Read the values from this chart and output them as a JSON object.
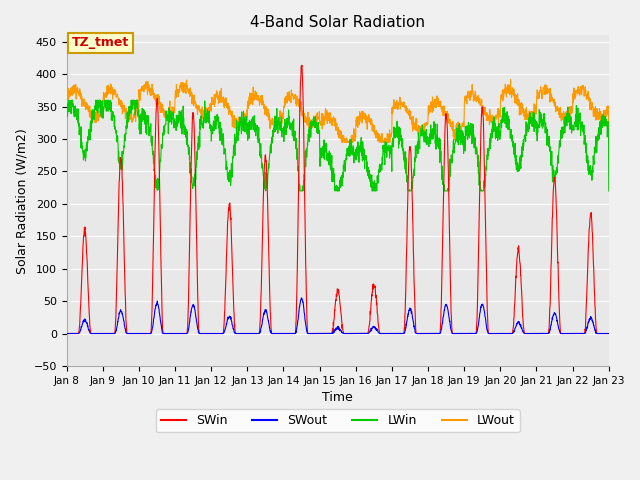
{
  "title": "4-Band Solar Radiation",
  "xlabel": "Time",
  "ylabel": "Solar Radiation (W/m2)",
  "ylim": [
    -50,
    460
  ],
  "yticks": [
    -50,
    0,
    50,
    100,
    150,
    200,
    250,
    300,
    350,
    400,
    450
  ],
  "x_start": 8,
  "x_end": 23,
  "xtick_labels": [
    "Jan 8",
    "Jan 9",
    "Jan 10",
    "Jan 11",
    "Jan 12",
    "Jan 13",
    "Jan 14",
    "Jan 15",
    "Jan 16",
    "Jan 17",
    "Jan 18",
    "Jan 19",
    "Jan 20",
    "Jan 21",
    "Jan 22",
    "Jan 23"
  ],
  "xtick_positions": [
    8,
    9,
    10,
    11,
    12,
    13,
    14,
    15,
    16,
    17,
    18,
    19,
    20,
    21,
    22,
    23
  ],
  "colors": {
    "SWin": "#ff0000",
    "SWout": "#0000ff",
    "LWin": "#00cc00",
    "LWout": "#ff9900"
  },
  "bg_color": "#e8e8e8",
  "grid_color": "#ffffff",
  "annotation_text": "TZ_tmet",
  "annotation_color": "#cc0000",
  "annotation_bg": "#ffffcc",
  "annotation_border": "#cc9900",
  "day_peaks_SWin": [
    160,
    270,
    360,
    340,
    200,
    275,
    415,
    65,
    75,
    290,
    340,
    350,
    130,
    240,
    185
  ],
  "LWin_bases": [
    330,
    330,
    310,
    310,
    300,
    300,
    300,
    260,
    260,
    285,
    285,
    290,
    305,
    305,
    305
  ],
  "LWout_bases": [
    355,
    355,
    360,
    360,
    345,
    345,
    345,
    315,
    315,
    335,
    335,
    350,
    355,
    355,
    355
  ]
}
